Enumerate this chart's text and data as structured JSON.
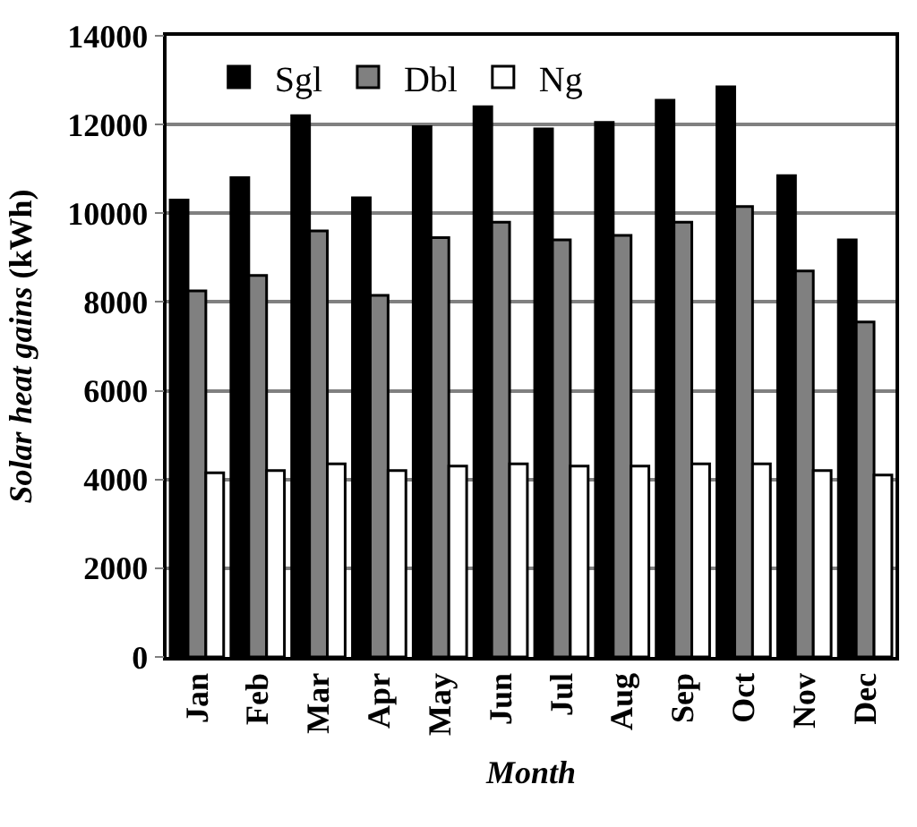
{
  "chart_data": {
    "type": "bar",
    "xlabel": "Month",
    "ylabel": "Solar heat gains (kWh)",
    "categories": [
      "Jan",
      "Feb",
      "Mar",
      "Apr",
      "May",
      "Jun",
      "Jul",
      "Aug",
      "Sep",
      "Oct",
      "Nov",
      "Dec"
    ],
    "series": [
      {
        "name": "Sgl",
        "color": "#000000",
        "values": [
          10300,
          10800,
          12200,
          10350,
          11950,
          12400,
          11900,
          12050,
          12550,
          12850,
          10850,
          9400
        ]
      },
      {
        "name": "Dbl",
        "color": "#808080",
        "values": [
          8250,
          8600,
          9600,
          8150,
          9450,
          9800,
          9400,
          9500,
          9800,
          10150,
          8700,
          7550
        ]
      },
      {
        "name": "Ng",
        "color": "#ffffff",
        "values": [
          4150,
          4200,
          4350,
          4200,
          4300,
          4350,
          4300,
          4300,
          4350,
          4350,
          4200,
          4100
        ]
      }
    ],
    "ylim": [
      0,
      14000
    ],
    "yticks": [
      0,
      2000,
      4000,
      6000,
      8000,
      10000,
      12000,
      14000
    ],
    "grid": "y",
    "legend": "top left"
  }
}
